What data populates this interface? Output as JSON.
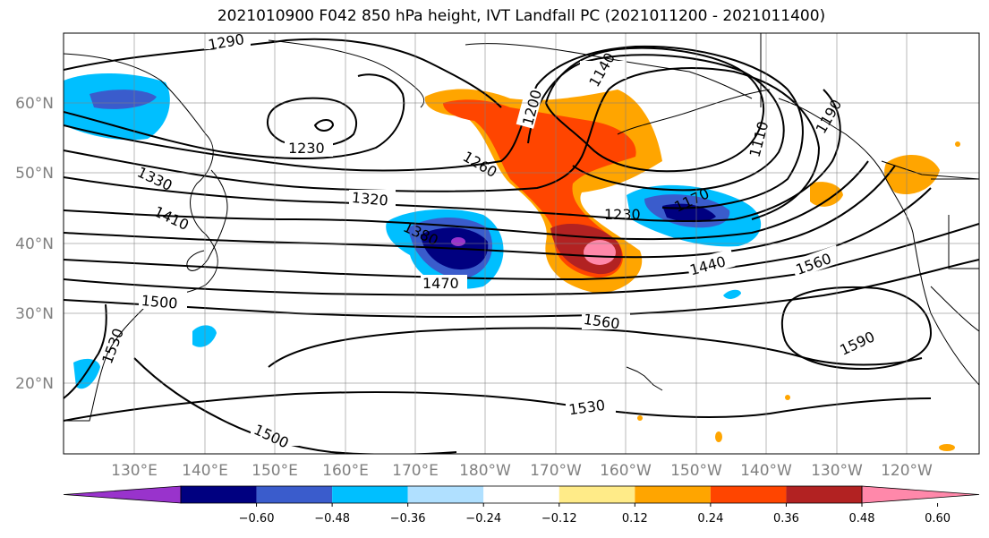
{
  "title": "2021010900 F042 850 hPa height, IVT Landfall PC (2021011200 - 2021011400)",
  "lon_labels": [
    "130°E",
    "140°E",
    "150°E",
    "160°E",
    "170°E",
    "180°W",
    "170°W",
    "160°W",
    "150°W",
    "140°W",
    "130°W",
    "120°W"
  ],
  "lat_labels": [
    "60°N",
    "50°N",
    "40°N",
    "30°N",
    "20°N"
  ],
  "contour_labels": [
    "1290",
    "1230",
    "1140",
    "1200",
    "1110",
    "1190",
    "1260",
    "1330",
    "1320",
    "1170",
    "1230",
    "1410",
    "1380",
    "1440",
    "1470",
    "1560",
    "1500",
    "1560",
    "1530",
    "1590",
    "1530",
    "1500"
  ],
  "colorbar": {
    "ticks": [
      "−0.60",
      "−0.48",
      "−0.36",
      "−0.24",
      "−0.12",
      "0.12",
      "0.24",
      "0.36",
      "0.48",
      "0.60"
    ],
    "colors": [
      "#9933cc",
      "#000080",
      "#3a5ccc",
      "#00bfff",
      "#b0e0ff",
      "#ffffff",
      "#ffeb88",
      "#ffa500",
      "#ff4500",
      "#b22222",
      "#ff88aa"
    ]
  }
}
